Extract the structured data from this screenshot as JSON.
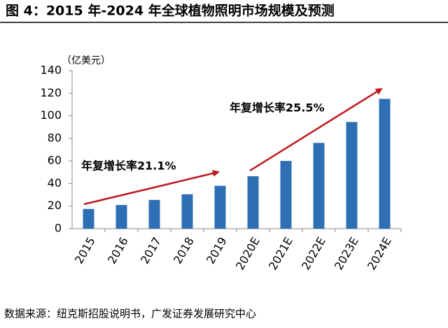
{
  "chart_data": {
    "type": "bar",
    "title": "图 4：2015 年-2024 年全球植物照明市场规模及预测",
    "unit_label": "（亿美元）",
    "source": "数据来源：纽克斯招股说明书，广发证券发展研究中心",
    "annotations": [
      "年复增长率21.1%",
      "年复增长率25.5%"
    ],
    "categories": [
      "2015",
      "2016",
      "2017",
      "2018",
      "2019",
      "2020E",
      "2021E",
      "2022E",
      "2023E",
      "2024E"
    ],
    "values": [
      17.5,
      21,
      25.5,
      30.5,
      38,
      46.5,
      60,
      76,
      94.5,
      115
    ],
    "color": "#2e6fb3",
    "ylim": [
      0,
      140
    ],
    "yticks": [
      0,
      20,
      40,
      60,
      80,
      100,
      120,
      140
    ],
    "grid": false
  }
}
